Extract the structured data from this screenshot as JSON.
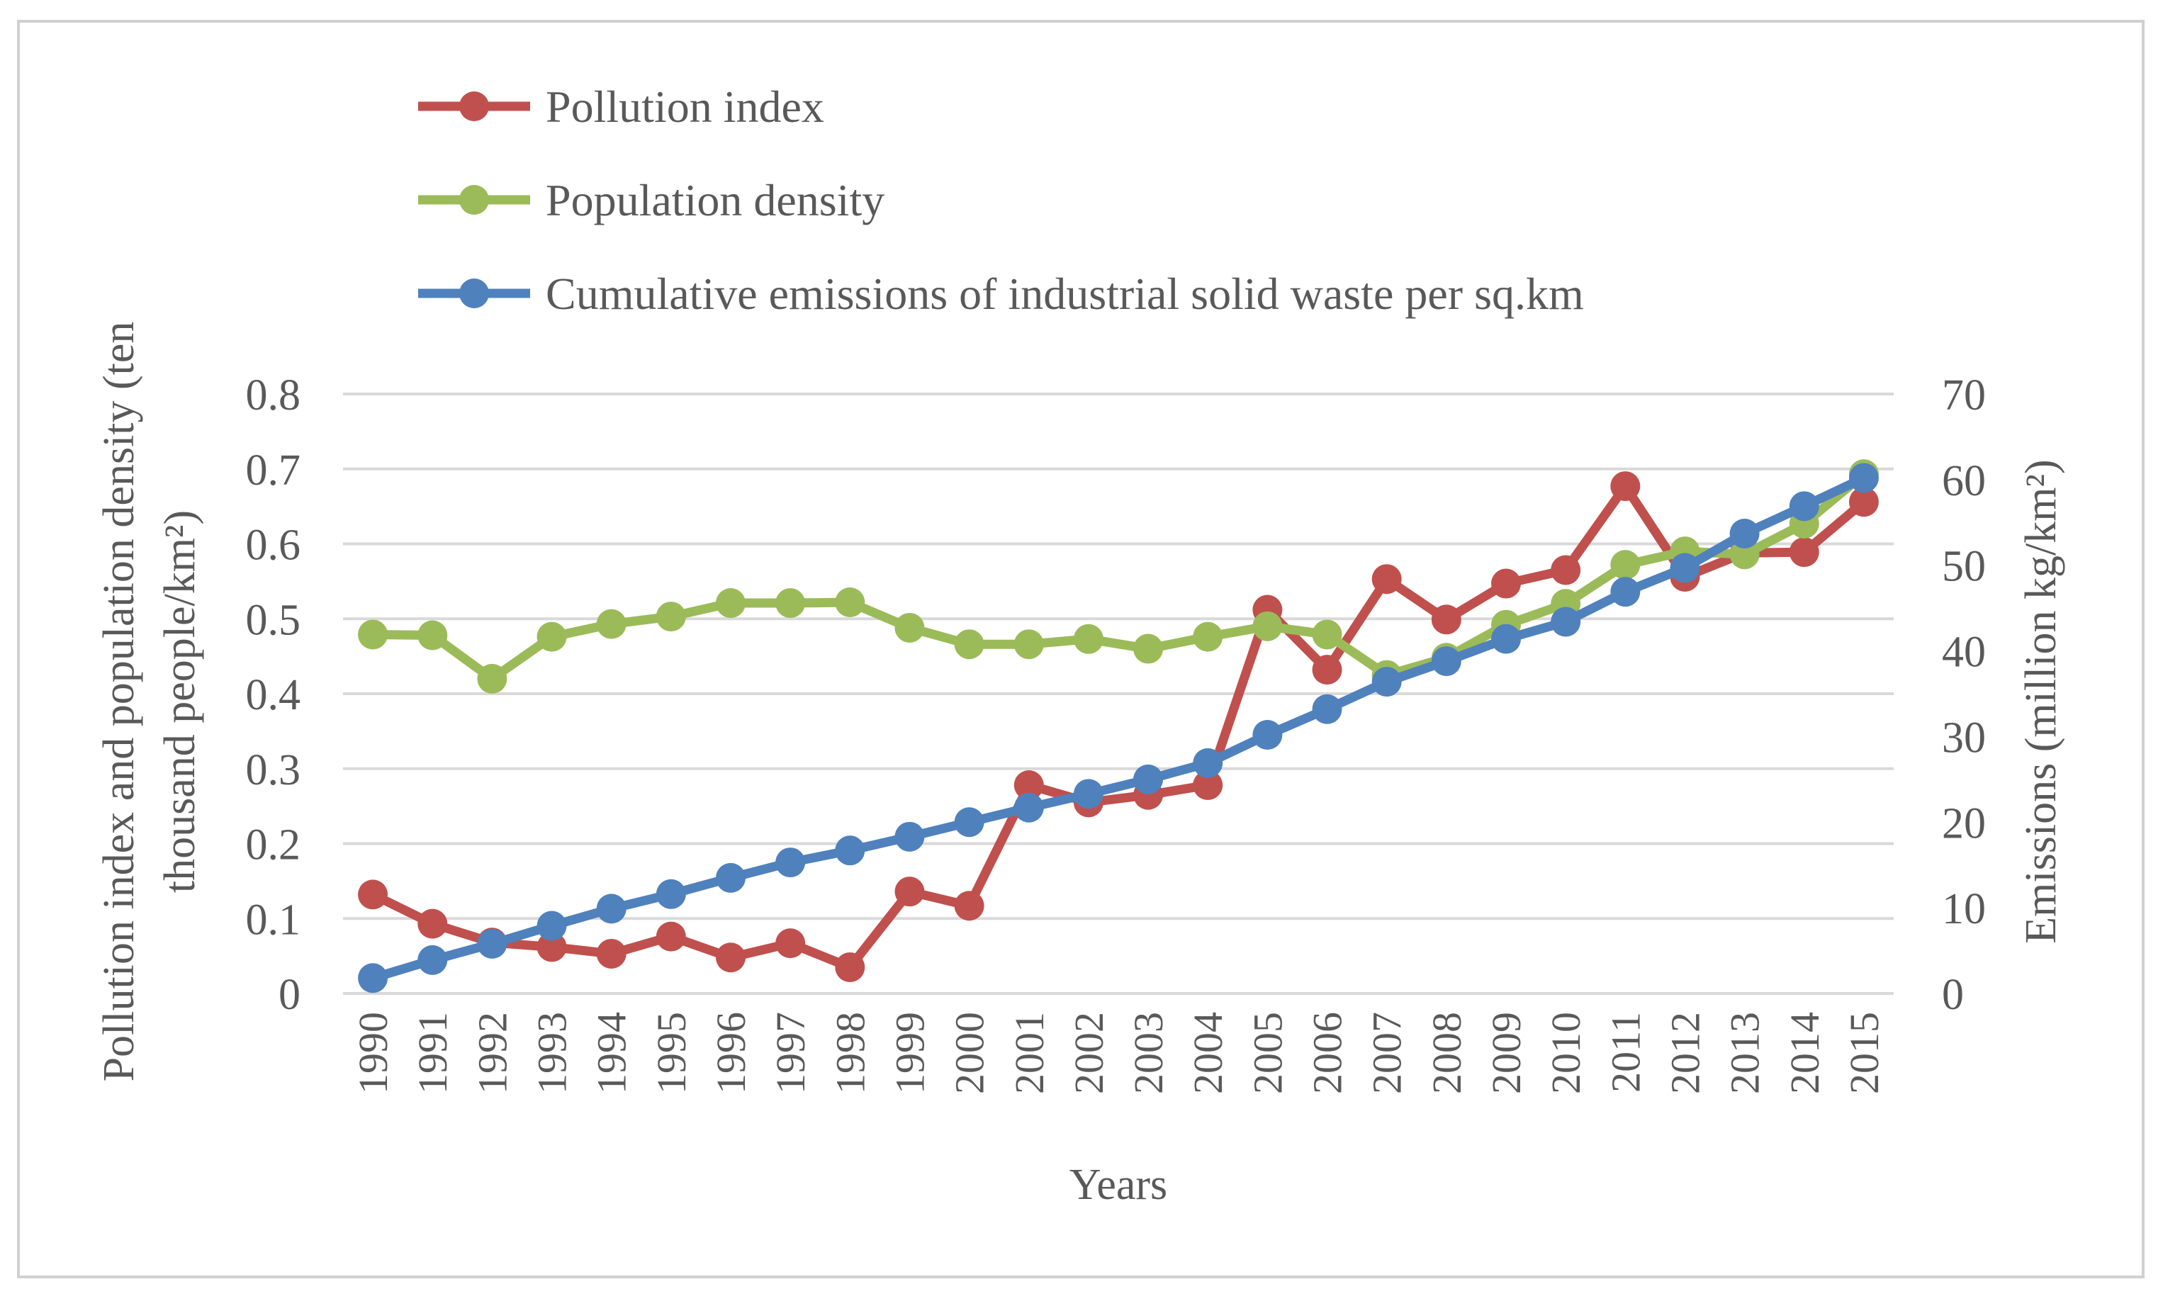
{
  "chart_data": {
    "type": "line",
    "title": "",
    "xlabel": "Years",
    "ylabel_left": "Pollution index and population density (ten thousand people/km²)",
    "ylabel_left_line1": "Pollution index and population density (ten",
    "ylabel_left_line2": "thousand people/km²)",
    "ylabel_right": "Emissions (million kg/km²)",
    "ylim_left": [
      0,
      0.8
    ],
    "ylim_right": [
      0,
      70
    ],
    "yticks_left": [
      "0",
      "0.1",
      "0.2",
      "0.3",
      "0.4",
      "0.5",
      "0.6",
      "0.7",
      "0.8"
    ],
    "yticks_right": [
      "0",
      "10",
      "20",
      "30",
      "40",
      "50",
      "60",
      "70"
    ],
    "grid": true,
    "legend_position": "top-left",
    "categories": [
      "1990",
      "1991",
      "1992",
      "1993",
      "1994",
      "1995",
      "1996",
      "1997",
      "1998",
      "1999",
      "2000",
      "2001",
      "2002",
      "2003",
      "2004",
      "2005",
      "2006",
      "2007",
      "2008",
      "2009",
      "2010",
      "2011",
      "2012",
      "2013",
      "2014",
      "2015"
    ],
    "series": [
      {
        "name": "Pollution index",
        "axis": "left",
        "color": "#c0504d",
        "values": [
          0.132,
          0.093,
          0.068,
          0.062,
          0.053,
          0.076,
          0.048,
          0.067,
          0.035,
          0.136,
          0.117,
          0.278,
          0.255,
          0.265,
          0.278,
          0.512,
          0.432,
          0.553,
          0.499,
          0.547,
          0.565,
          0.677,
          0.556,
          0.588,
          0.589,
          0.656
        ]
      },
      {
        "name": "Population density",
        "axis": "left",
        "color": "#9bbb59",
        "values": [
          0.479,
          0.478,
          0.42,
          0.476,
          0.493,
          0.503,
          0.521,
          0.521,
          0.522,
          0.488,
          0.466,
          0.466,
          0.473,
          0.46,
          0.476,
          0.49,
          0.479,
          0.425,
          0.448,
          0.492,
          0.52,
          0.572,
          0.59,
          0.586,
          0.627,
          0.693
        ]
      },
      {
        "name": "Cumulative emissions of industrial solid waste per sq.km",
        "axis": "right",
        "color": "#4f81bd",
        "values": [
          1.8,
          3.9,
          5.8,
          7.9,
          9.9,
          11.6,
          13.5,
          15.3,
          16.7,
          18.3,
          20.0,
          21.7,
          23.3,
          25.0,
          26.9,
          30.2,
          33.2,
          36.4,
          38.8,
          41.4,
          43.4,
          46.9,
          49.7,
          53.7,
          56.9,
          60.2
        ]
      }
    ]
  }
}
